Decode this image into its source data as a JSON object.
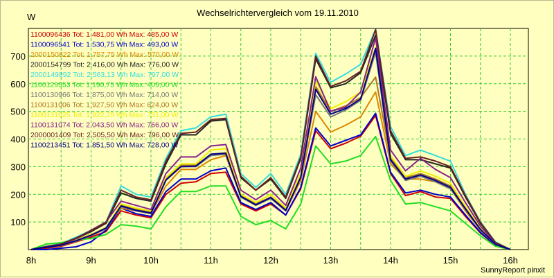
{
  "chart_data": {
    "type": "line",
    "title": "Wechselrichtervergleich vom 19.11.2010",
    "ylabel": "W",
    "footer": "SunnyReport pinxit",
    "ylim": [
      0,
      800
    ],
    "yticks": [
      100,
      200,
      300,
      400,
      500,
      600,
      700
    ],
    "xtick_labels": [
      "8h",
      "9h",
      "10h",
      "11h",
      "12h",
      "13h",
      "14h",
      "15h",
      "16h"
    ],
    "grid": true,
    "legend_position": "top-left",
    "x": [
      8.0,
      8.25,
      8.5,
      8.75,
      9.0,
      9.25,
      9.5,
      9.75,
      10.0,
      10.25,
      10.5,
      10.75,
      11.0,
      11.25,
      11.5,
      11.75,
      12.0,
      12.25,
      12.5,
      12.75,
      13.0,
      13.25,
      13.5,
      13.75,
      14.0,
      14.25,
      14.5,
      14.75,
      15.0,
      15.25,
      15.5,
      15.75,
      16.0
    ],
    "series": [
      {
        "name": "1100096436 Tot: 1.481,00 Wh Max: 485,00 W",
        "color": "#cc0000",
        "values": [
          0,
          5,
          12,
          28,
          45,
          65,
          140,
          125,
          115,
          200,
          240,
          245,
          275,
          280,
          165,
          140,
          165,
          125,
          220,
          430,
          365,
          385,
          410,
          485,
          275,
          195,
          210,
          190,
          185,
          120,
          60,
          15,
          0
        ]
      },
      {
        "name": "1100096541 Tot: 1.530,75 Wh Max: 493,00 W",
        "color": "#0000cc",
        "values": [
          0,
          0,
          5,
          10,
          28,
          70,
          150,
          130,
          120,
          210,
          255,
          255,
          285,
          295,
          170,
          145,
          170,
          125,
          225,
          440,
          375,
          395,
          415,
          493,
          280,
          205,
          215,
          200,
          190,
          125,
          62,
          16,
          0
        ]
      },
      {
        "name": "2000150822 Tot: 1.757,75 Wh Max: 570,00 W",
        "color": "#dd8800",
        "values": [
          0,
          8,
          15,
          35,
          55,
          80,
          150,
          140,
          130,
          230,
          290,
          290,
          325,
          340,
          190,
          160,
          190,
          140,
          250,
          500,
          425,
          450,
          480,
          570,
          310,
          255,
          255,
          245,
          220,
          140,
          70,
          18,
          0
        ]
      },
      {
        "name": "2000154799 Tot: 2.416,00 Wh Max: 776,00 W",
        "color": "#222222",
        "values": [
          0,
          10,
          20,
          40,
          65,
          95,
          205,
          185,
          175,
          310,
          415,
          415,
          465,
          470,
          260,
          215,
          255,
          185,
          330,
          690,
          585,
          600,
          640,
          776,
          420,
          325,
          325,
          310,
          295,
          190,
          95,
          25,
          0
        ]
      },
      {
        "name": "2000149892 Tot: 2.563,13 Wh Max: 797,00 W",
        "color": "#33dddd",
        "values": [
          0,
          12,
          22,
          45,
          70,
          100,
          230,
          200,
          190,
          330,
          430,
          440,
          480,
          490,
          275,
          225,
          275,
          200,
          345,
          710,
          605,
          635,
          670,
          797,
          445,
          340,
          360,
          340,
          320,
          200,
          100,
          28,
          0
        ]
      },
      {
        "name": "1100129553 Tot: 1.190,75 Wh Max: 409,00 W",
        "color": "#22dd22",
        "values": [
          0,
          20,
          25,
          35,
          40,
          55,
          90,
          85,
          75,
          155,
          210,
          210,
          230,
          230,
          120,
          90,
          105,
          75,
          165,
          375,
          310,
          320,
          340,
          409,
          250,
          165,
          170,
          155,
          140,
          95,
          50,
          12,
          0
        ]
      },
      {
        "name": "1100130966 Tot: 1.875,00 Wh Max: 714,00 W",
        "color": "#777777",
        "values": [
          0,
          8,
          15,
          30,
          50,
          75,
          155,
          140,
          130,
          250,
          300,
          300,
          340,
          345,
          190,
          160,
          185,
          140,
          260,
          560,
          480,
          505,
          540,
          714,
          320,
          250,
          265,
          245,
          220,
          145,
          72,
          18,
          0
        ]
      },
      {
        "name": "1100131006 Tot: 1.927,50 Wh Max: 624,00 W",
        "color": "#aa7722",
        "values": [
          0,
          9,
          16,
          32,
          52,
          78,
          160,
          145,
          135,
          255,
          305,
          305,
          345,
          350,
          195,
          165,
          190,
          145,
          265,
          590,
          500,
          520,
          550,
          624,
          330,
          260,
          275,
          255,
          230,
          150,
          75,
          20,
          0
        ]
      },
      {
        "name": "1100131025 Tot: 1.922,25 Wh Max: 731,00 W",
        "color": "#eeee00",
        "values": [
          0,
          9,
          17,
          33,
          54,
          80,
          165,
          150,
          140,
          260,
          310,
          310,
          360,
          365,
          200,
          170,
          200,
          150,
          275,
          610,
          510,
          535,
          570,
          731,
          340,
          265,
          285,
          265,
          240,
          155,
          78,
          20,
          0
        ]
      },
      {
        "name": "1100131074 Tot: 2.043,50 Wh Max: 766,00 W",
        "color": "#882288",
        "values": [
          0,
          10,
          18,
          40,
          70,
          100,
          175,
          160,
          145,
          275,
          335,
          335,
          375,
          380,
          215,
          180,
          215,
          160,
          295,
          625,
          500,
          515,
          570,
          766,
          360,
          285,
          330,
          290,
          260,
          170,
          85,
          22,
          0
        ]
      },
      {
        "name": "2000001409 Tot: 2.505,50 Wh Max: 796,00 W",
        "color": "#662222",
        "values": [
          0,
          11,
          20,
          42,
          68,
          98,
          215,
          190,
          180,
          320,
          420,
          425,
          470,
          475,
          265,
          215,
          260,
          190,
          335,
          700,
          590,
          610,
          645,
          796,
          430,
          330,
          335,
          320,
          300,
          195,
          98,
          26,
          0
        ]
      },
      {
        "name": "1100213451 Tot: 1.851,50 Wh Max: 728,00 W",
        "color": "#000088",
        "values": [
          0,
          8,
          16,
          32,
          52,
          78,
          158,
          142,
          132,
          252,
          300,
          302,
          345,
          348,
          192,
          162,
          188,
          142,
          262,
          580,
          490,
          510,
          545,
          728,
          325,
          255,
          270,
          250,
          225,
          148,
          73,
          19,
          0
        ]
      }
    ]
  }
}
